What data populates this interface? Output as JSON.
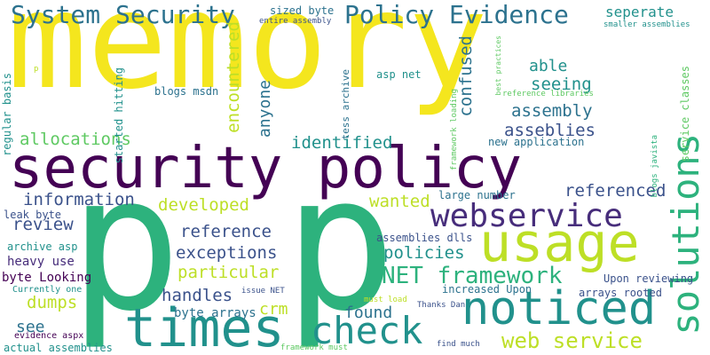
{
  "words": {
    "memory": "memory",
    "security_policy": "security policy",
    "p_left": "p",
    "p_right": "p",
    "times": "times",
    "noticed": "noticed",
    "usage": "usage",
    "webservice": "webservice",
    "check": "check",
    "solutions": "solutions",
    "system_security": "System Security",
    "policy_evidence": "Policy Evidence",
    "net_framework": "NET framework",
    "web_service": "web service",
    "allocations": "allocations",
    "information": "information",
    "identified": "identified",
    "developed": "developed",
    "referenced": "referenced",
    "reference": "reference",
    "exceptions": "exceptions",
    "particular": "particular",
    "handles": "handles",
    "dumps": "dumps",
    "review": "review",
    "see": "see",
    "crm": "crm",
    "found": "found",
    "policies": "policies",
    "wanted": "wanted",
    "assembly": "assembly",
    "asseblies": "asseblies",
    "seeing": "seeing",
    "able": "able",
    "seperate": "seperate",
    "confused": "confused",
    "encountered": "encountered",
    "anyone": "anyone",
    "byte_arrays": "byte arrays",
    "heavy_use": "heavy use",
    "archive_asp": "archive asp",
    "byte_looking": "byte Looking",
    "leak_byte": "leak byte",
    "actual_assemblies": "actual assemblies",
    "evidence_aspx": "evidence aspx",
    "currently_one": "Currently one",
    "regular_basis": "regular basis",
    "started_hitting": "started hitting",
    "blogs_msdn": "blogs msdn",
    "tess_archive": "tess archive",
    "asp_net": "asp net",
    "sized_byte": "sized byte",
    "entire_assembly": "entire assembly",
    "smaller_assemblies": "smaller assemblies",
    "best_practices": "best practices",
    "reference_libraries": "reference libraries",
    "framework_loading": "framework loading",
    "blogs_javista": "blogs javista",
    "service_classes": "service classes",
    "new_application": "new application",
    "large_number": "large number",
    "assemblies_dlls": "assemblies dlls",
    "upon_reviewing": "Upon reviewing",
    "arrays_rooted": "arrays rooted",
    "increased_upon": "increased Upon",
    "thanks_dan": "Thanks Dan",
    "must_load": "must load",
    "issue_net": "issue NET",
    "framework_must": "framework must",
    "find_much": "find much",
    "p_small": "p"
  }
}
